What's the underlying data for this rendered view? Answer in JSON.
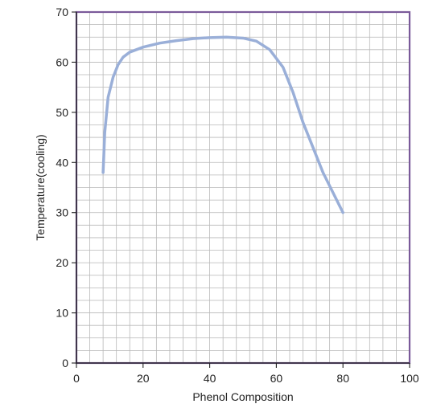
{
  "chart_data": {
    "type": "line",
    "xlabel": "Phenol Composition",
    "ylabel": "Temperature(cooling)",
    "xlim": [
      0,
      100
    ],
    "ylim": [
      0,
      70
    ],
    "x_ticks": [
      0,
      20,
      40,
      60,
      80,
      100
    ],
    "y_ticks": [
      0,
      10,
      20,
      30,
      40,
      50,
      60,
      70
    ],
    "x_tick_labels": [
      "0",
      "20",
      "40",
      "60",
      "80",
      "100"
    ],
    "y_tick_labels": [
      "0",
      "10",
      "20",
      "30",
      "40",
      "50",
      "60",
      "70"
    ],
    "grid": true,
    "minor_grid_step_x": 4,
    "minor_grid_step_y": 2.5,
    "series": [
      {
        "values": [
          [
            8,
            38
          ],
          [
            8.5,
            46
          ],
          [
            9.5,
            53
          ],
          [
            11,
            57
          ],
          [
            12.5,
            59.5
          ],
          [
            14,
            61
          ],
          [
            16,
            62
          ],
          [
            20,
            63
          ],
          [
            25,
            63.8
          ],
          [
            30,
            64.3
          ],
          [
            35,
            64.7
          ],
          [
            40,
            64.9
          ],
          [
            45,
            65
          ],
          [
            50,
            64.8
          ],
          [
            54,
            64.2
          ],
          [
            58,
            62.5
          ],
          [
            62,
            59
          ],
          [
            65,
            54
          ],
          [
            68,
            48
          ],
          [
            71,
            43
          ],
          [
            74,
            38
          ],
          [
            77,
            34
          ],
          [
            80,
            30
          ]
        ]
      }
    ],
    "colors": {
      "line": "#9AAFD8",
      "grid": "#b8b8b8",
      "frame": "#7a5a9a",
      "text": "#222222"
    }
  }
}
